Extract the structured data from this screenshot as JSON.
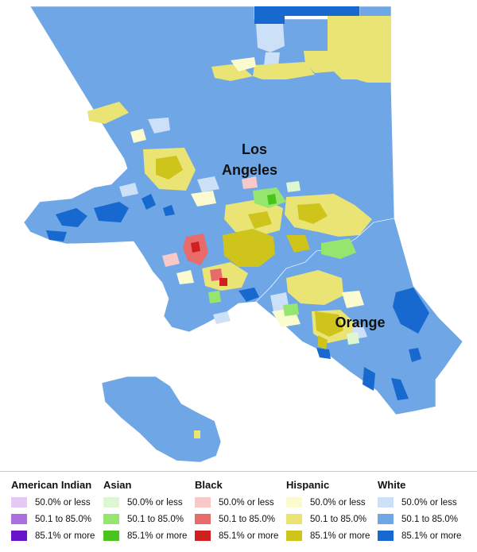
{
  "map": {
    "labels": {
      "los_angeles_line1": "Los",
      "los_angeles_line2": "Angeles",
      "orange": "Orange"
    },
    "colors": {
      "background": "#ffffff",
      "border": "#ffffff"
    }
  },
  "legend": {
    "groups": [
      {
        "title": "American Indian",
        "items": [
          {
            "label": "50.0% or less",
            "color": "#e4c8f5"
          },
          {
            "label": "50.1 to 85.0%",
            "color": "#ab6fe0"
          },
          {
            "label": "85.1% or more",
            "color": "#6a11cb"
          }
        ]
      },
      {
        "title": "Asian",
        "items": [
          {
            "label": "50.0% or less",
            "color": "#dcf7d1"
          },
          {
            "label": "50.1 to 85.0%",
            "color": "#96e56e"
          },
          {
            "label": "85.1% or more",
            "color": "#49c41b"
          }
        ]
      },
      {
        "title": "Black",
        "items": [
          {
            "label": "50.0% or less",
            "color": "#f9c9c9"
          },
          {
            "label": "50.1 to 85.0%",
            "color": "#e86b6b"
          },
          {
            "label": "85.1% or more",
            "color": "#d11f1f"
          }
        ]
      },
      {
        "title": "Hispanic",
        "items": [
          {
            "label": "50.0% or less",
            "color": "#fcfbcf"
          },
          {
            "label": "50.1 to 85.0%",
            "color": "#eae474"
          },
          {
            "label": "85.1% or more",
            "color": "#cec41b"
          }
        ]
      },
      {
        "title": "White",
        "items": [
          {
            "label": "50.0% or less",
            "color": "#cce0f7"
          },
          {
            "label": "50.1 to 85.0%",
            "color": "#6fa6e6"
          },
          {
            "label": "85.1% or more",
            "color": "#1768cf"
          }
        ]
      }
    ]
  }
}
